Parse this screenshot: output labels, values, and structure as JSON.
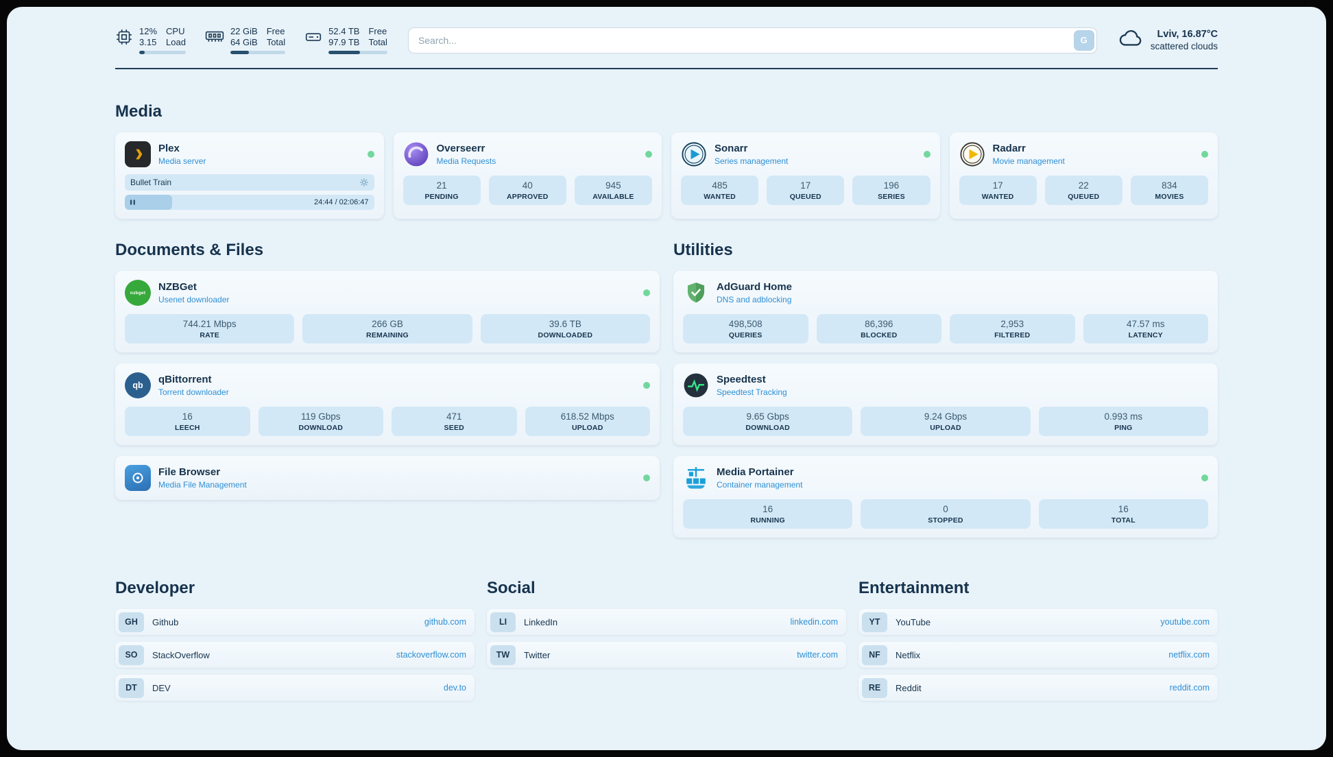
{
  "colors": {
    "background": "#e8f2f9",
    "card": "#f1f8fc",
    "stat_box": "#d3e8f6",
    "text_dark": "#16334d",
    "accent_blue": "#2e8fd5",
    "status_online": "#72d79c",
    "plex_brand": "#e5a00d",
    "sonarr_brand": "#1b9ad2",
    "radarr_brand": "#f2b705",
    "nzbget_brand": "#37a93c",
    "adguard_brand": "#5aaf6b",
    "speedtest_pulse": "#39e58c",
    "portainer_brand": "#1a9fd9",
    "overseerr_brand": "#6d4fc4"
  },
  "header": {
    "cpu": {
      "icon": "cpu-chip-icon",
      "value": "12%",
      "value2": "3.15",
      "label1": "CPU",
      "label2": "Load",
      "bar_percent": 12
    },
    "memory": {
      "icon": "memory-icon",
      "value": "22 GiB",
      "value2": "64 GiB",
      "label1": "Free",
      "label2": "Total",
      "bar_percent": 34
    },
    "storage": {
      "icon": "storage-drive-icon",
      "value": "52.4 TB",
      "value2": "97.9 TB",
      "label1": "Free",
      "label2": "Total",
      "bar_percent": 54
    },
    "search": {
      "placeholder": "Search...",
      "engine_label": "G"
    },
    "weather": {
      "icon": "cloud-icon",
      "location": "Lviv, 16.87°C",
      "condition": "scattered clouds"
    }
  },
  "sections": {
    "media": {
      "title": "Media",
      "plex": {
        "icon": "plex-icon",
        "name": "Plex",
        "subtitle": "Media server",
        "online": true,
        "now_playing": {
          "title": "Bullet Train",
          "time": "24:44 / 02:06:47",
          "progress_percent": 19
        }
      },
      "overseerr": {
        "icon": "overseerr-icon",
        "name": "Overseerr",
        "subtitle": "Media Requests",
        "online": true,
        "stats": [
          {
            "value": "21",
            "label": "PENDING"
          },
          {
            "value": "40",
            "label": "APPROVED"
          },
          {
            "value": "945",
            "label": "AVAILABLE"
          }
        ]
      },
      "sonarr": {
        "icon": "sonarr-icon",
        "name": "Sonarr",
        "subtitle": "Series management",
        "online": true,
        "stats": [
          {
            "value": "485",
            "label": "WANTED"
          },
          {
            "value": "17",
            "label": "QUEUED"
          },
          {
            "value": "196",
            "label": "SERIES"
          }
        ]
      },
      "radarr": {
        "icon": "radarr-icon",
        "name": "Radarr",
        "subtitle": "Movie management",
        "online": true,
        "stats": [
          {
            "value": "17",
            "label": "WANTED"
          },
          {
            "value": "22",
            "label": "QUEUED"
          },
          {
            "value": "834",
            "label": "MOVIES"
          }
        ]
      }
    },
    "documents": {
      "title": "Documents & Files",
      "nzbget": {
        "icon": "nzbget-icon",
        "icon_text": "nzbget",
        "name": "NZBGet",
        "subtitle": "Usenet downloader",
        "online": true,
        "stats": [
          {
            "value": "744.21 Mbps",
            "label": "RATE"
          },
          {
            "value": "266 GB",
            "label": "REMAINING"
          },
          {
            "value": "39.6 TB",
            "label": "DOWNLOADED"
          }
        ]
      },
      "qbittorrent": {
        "icon": "qbittorrent-icon",
        "icon_text": "qb",
        "name": "qBittorrent",
        "subtitle": "Torrent downloader",
        "online": true,
        "stats": [
          {
            "value": "16",
            "label": "LEECH"
          },
          {
            "value": "119 Gbps",
            "label": "DOWNLOAD"
          },
          {
            "value": "471",
            "label": "SEED"
          },
          {
            "value": "618.52 Mbps",
            "label": "UPLOAD"
          }
        ]
      },
      "filebrowser": {
        "icon": "filebrowser-icon",
        "name": "File Browser",
        "subtitle": "Media File Management",
        "online": true
      }
    },
    "utilities": {
      "title": "Utilities",
      "adguard": {
        "icon": "adguard-shield-icon",
        "name": "AdGuard Home",
        "subtitle": "DNS and adblocking",
        "stats": [
          {
            "value": "498,508",
            "label": "QUERIES"
          },
          {
            "value": "86,396",
            "label": "BLOCKED"
          },
          {
            "value": "2,953",
            "label": "FILTERED"
          },
          {
            "value": "47.57 ms",
            "label": "LATENCY"
          }
        ]
      },
      "speedtest": {
        "icon": "speedtest-icon",
        "name": "Speedtest",
        "subtitle": "Speedtest Tracking",
        "stats": [
          {
            "value": "9.65 Gbps",
            "label": "DOWNLOAD"
          },
          {
            "value": "9.24 Gbps",
            "label": "UPLOAD"
          },
          {
            "value": "0.993 ms",
            "label": "PING"
          }
        ]
      },
      "portainer": {
        "icon": "portainer-icon",
        "name": "Media Portainer",
        "subtitle": "Container management",
        "online": true,
        "stats": [
          {
            "value": "16",
            "label": "RUNNING"
          },
          {
            "value": "0",
            "label": "STOPPED"
          },
          {
            "value": "16",
            "label": "TOTAL"
          }
        ]
      }
    },
    "bookmarks": [
      {
        "title": "Developer",
        "links": [
          {
            "abbr": "GH",
            "name": "Github",
            "url": "github.com"
          },
          {
            "abbr": "SO",
            "name": "StackOverflow",
            "url": "stackoverflow.com"
          },
          {
            "abbr": "DT",
            "name": "DEV",
            "url": "dev.to"
          }
        ]
      },
      {
        "title": "Social",
        "links": [
          {
            "abbr": "LI",
            "name": "LinkedIn",
            "url": "linkedin.com"
          },
          {
            "abbr": "TW",
            "name": "Twitter",
            "url": "twitter.com"
          }
        ]
      },
      {
        "title": "Entertainment",
        "links": [
          {
            "abbr": "YT",
            "name": "YouTube",
            "url": "youtube.com"
          },
          {
            "abbr": "NF",
            "name": "Netflix",
            "url": "netflix.com"
          },
          {
            "abbr": "RE",
            "name": "Reddit",
            "url": "reddit.com"
          }
        ]
      }
    ]
  }
}
